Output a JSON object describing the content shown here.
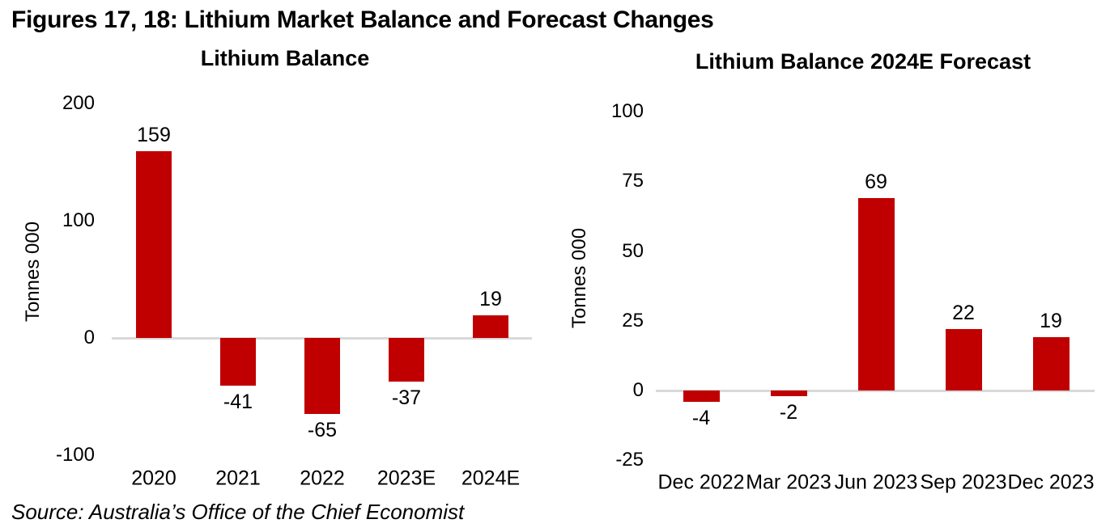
{
  "page": {
    "title": "Figures 17, 18: Lithium Market Balance and Forecast Changes",
    "source": "Source: Australia’s Office of the Chief Economist"
  },
  "colors": {
    "bar": "#c00000",
    "axis_line": "#d9d9d9",
    "text": "#000000",
    "background": "#ffffff"
  },
  "chart_data": [
    {
      "type": "bar",
      "title": "Lithium Balance",
      "ylabel": "Tonnes 000",
      "xlabel": "",
      "categories": [
        "2020",
        "2021",
        "2022",
        "2023E",
        "2024E"
      ],
      "values": [
        159,
        -41,
        -65,
        -37,
        19
      ],
      "data_labels": [
        "159",
        "-41",
        "-65",
        "-37",
        "19"
      ],
      "yticks": [
        200,
        100,
        0,
        -100
      ],
      "ylim": [
        -100,
        200
      ],
      "grid": false,
      "legend": false,
      "bar_color": "#c00000"
    },
    {
      "type": "bar",
      "title": "Lithium Balance 2024E Forecast",
      "ylabel": "Tonnes 000",
      "xlabel": "",
      "categories": [
        "Dec 2022",
        "Mar 2023",
        "Jun 2023",
        "Sep 2023",
        "Dec 2023"
      ],
      "values": [
        -4,
        -2,
        69,
        22,
        19
      ],
      "data_labels": [
        "-4",
        "-2",
        "69",
        "22",
        "19"
      ],
      "yticks": [
        100,
        75,
        50,
        25,
        0,
        -25
      ],
      "ylim": [
        -25,
        100
      ],
      "grid": false,
      "legend": false,
      "bar_color": "#c00000"
    }
  ]
}
